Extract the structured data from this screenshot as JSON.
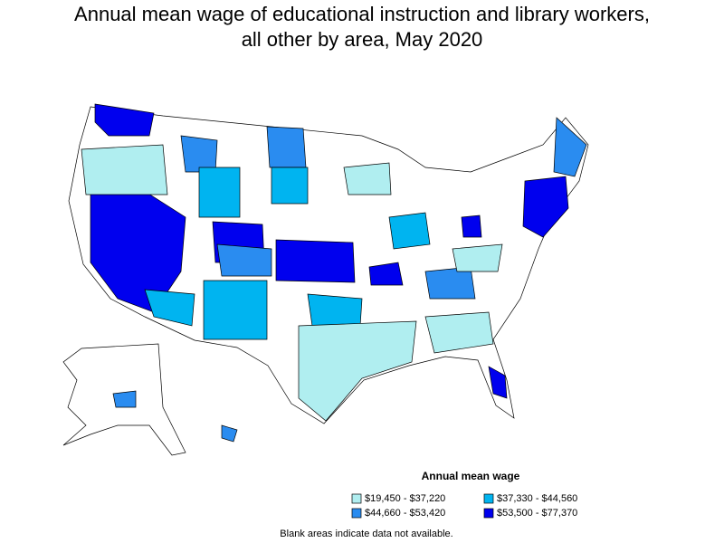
{
  "title": "Annual mean wage of educational instruction and library workers, all other by area, May 2020",
  "legend": {
    "title": "Annual mean wage",
    "items": [
      {
        "label": "$19,450 - $37,220",
        "color": "#b0eef0"
      },
      {
        "label": "$37,330 - $44,560",
        "color": "#00b4f0"
      },
      {
        "label": "$44,660 - $53,420",
        "color": "#2a8cf0"
      },
      {
        "label": "$53,500 - $77,370",
        "color": "#0000ee"
      }
    ]
  },
  "note": "Blank areas indicate data not available."
}
